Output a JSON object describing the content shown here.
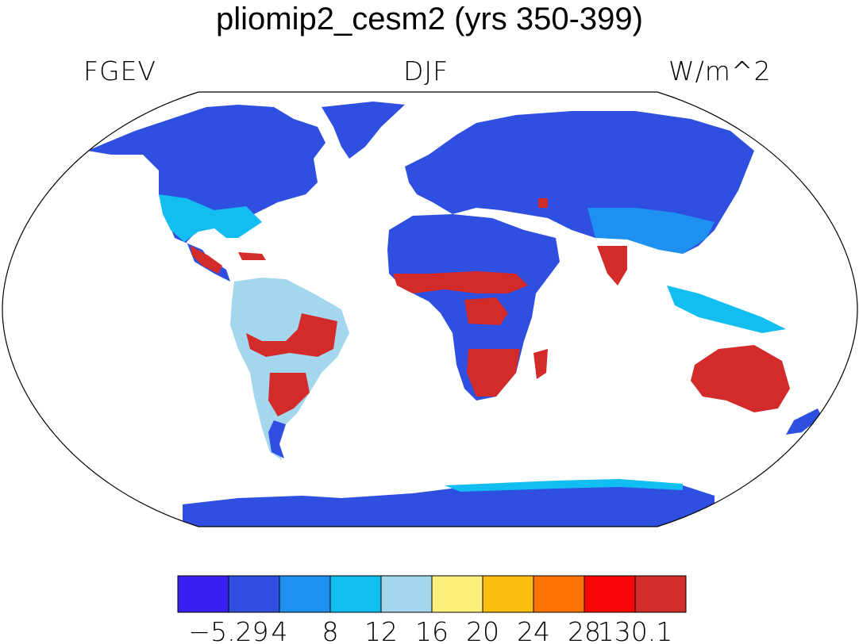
{
  "title": "pliomip2_cesm2 (yrs 350-399)",
  "left_label": "FGEV",
  "center_label": "DJF",
  "right_label": "W/m^2",
  "colorbar": {
    "colors": [
      "#3a1ff2",
      "#2e4fe0",
      "#1e90f0",
      "#12bdf2",
      "#a4d7ee",
      "#fdf07a",
      "#fcbc12",
      "#fd7303",
      "#fb0606",
      "#d32a2a"
    ],
    "tick_labels": [
      "−5.29",
      "4",
      "8",
      "12",
      "16",
      "20",
      "24",
      "28",
      "130.1"
    ]
  },
  "map": {
    "projection": "robinson",
    "ocean_color": "#ffffff",
    "coastline_color": "#000000"
  }
}
